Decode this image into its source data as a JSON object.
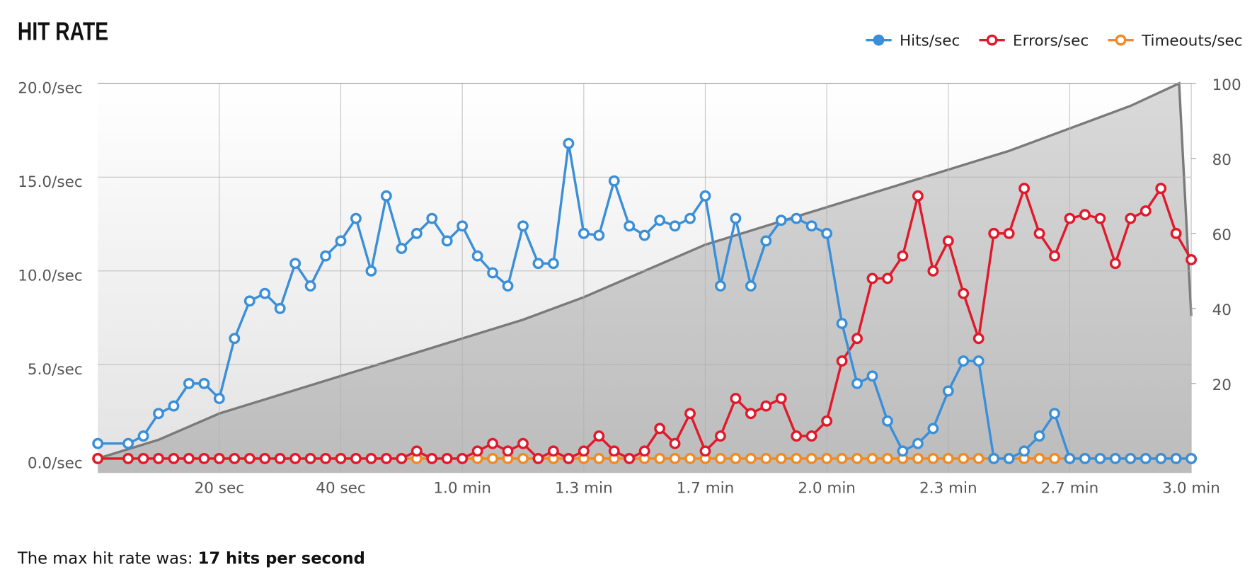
{
  "chart_data": {
    "type": "line",
    "title": "HIT RATE",
    "xlim": [
      0,
      180
    ],
    "xticks": [
      {
        "value": 20,
        "label": "20 sec"
      },
      {
        "value": 40,
        "label": "40 sec"
      },
      {
        "value": 60,
        "label": "1.0 min"
      },
      {
        "value": 80,
        "label": "1.3 min"
      },
      {
        "value": 100,
        "label": "1.7 min"
      },
      {
        "value": 120,
        "label": "2.0 min"
      },
      {
        "value": 140,
        "label": "2.3 min"
      },
      {
        "value": 160,
        "label": "2.7 min"
      },
      {
        "value": 180,
        "label": "3.0 min"
      }
    ],
    "ylim": [
      0,
      20
    ],
    "yticks": [
      {
        "value": 0,
        "label": "0.0/sec"
      },
      {
        "value": 5,
        "label": "5.0/sec"
      },
      {
        "value": 10,
        "label": "10.0/sec"
      },
      {
        "value": 15,
        "label": "15.0/sec"
      },
      {
        "value": 20,
        "label": "20.0/sec"
      }
    ],
    "y2lim": [
      0,
      100
    ],
    "y2ticks": [
      20,
      40,
      60,
      80,
      100
    ],
    "grid": true,
    "legend": "top-right",
    "x": [
      0,
      5,
      7.5,
      10,
      12.5,
      15,
      17.5,
      20,
      22.5,
      25,
      27.5,
      30,
      32.5,
      35,
      37.5,
      40,
      42.5,
      45,
      47.5,
      50,
      52.5,
      55,
      57.5,
      60,
      62.5,
      65,
      67.5,
      70,
      72.5,
      75,
      77.5,
      80,
      82.5,
      85,
      87.5,
      90,
      92.5,
      95,
      97.5,
      100,
      102.5,
      105,
      107.5,
      110,
      112.5,
      115,
      117.5,
      120,
      122.5,
      125,
      127.5,
      130,
      132.5,
      135,
      137.5,
      140,
      142.5,
      145,
      147.5,
      150,
      152.5,
      155,
      157.5,
      160,
      162.5,
      165,
      167.5,
      170,
      172.5,
      175,
      177.5,
      180
    ],
    "series": [
      {
        "type": "area",
        "axis": "y2",
        "color": "#7a7a7a",
        "x": [
          0,
          10,
          20,
          30,
          40,
          50,
          60,
          70,
          80,
          90,
          100,
          110,
          120,
          130,
          140,
          150,
          160,
          170,
          178,
          180
        ],
        "values": [
          0,
          5,
          12,
          17,
          22,
          27,
          32,
          37,
          43,
          50,
          57,
          62,
          67,
          72,
          77,
          82,
          88,
          94,
          100,
          38
        ]
      },
      {
        "name": "Hits/sec",
        "color": "#3a8fd8",
        "values": [
          0.8,
          0.8,
          1.2,
          2.4,
          2.8,
          4.0,
          4.0,
          3.2,
          6.4,
          8.4,
          8.8,
          8.0,
          10.4,
          9.2,
          10.8,
          11.6,
          12.8,
          10.0,
          14.0,
          11.2,
          12.0,
          12.8,
          11.6,
          12.4,
          10.8,
          9.9,
          9.2,
          12.4,
          10.4,
          10.4,
          16.8,
          12.0,
          11.9,
          14.8,
          12.4,
          11.9,
          12.7,
          12.4,
          12.8,
          14.0,
          9.2,
          12.8,
          9.2,
          11.6,
          12.7,
          12.8,
          12.4,
          12.0,
          7.2,
          4.0,
          4.4,
          2.0,
          0.4,
          0.8,
          1.6,
          3.6,
          5.2,
          5.2,
          0,
          0,
          0.4,
          1.2,
          2.4,
          0,
          0,
          0,
          0,
          0,
          0,
          0,
          0,
          0
        ]
      },
      {
        "name": "Errors/sec",
        "color": "#e0192b",
        "values": [
          0,
          0,
          0,
          0,
          0,
          0,
          0,
          0,
          0,
          0,
          0,
          0,
          0,
          0,
          0,
          0,
          0,
          0,
          0,
          0,
          0.4,
          0,
          0,
          0,
          0.4,
          0.8,
          0.4,
          0.8,
          0,
          0.4,
          0,
          0.4,
          1.2,
          0.4,
          0,
          0.4,
          1.6,
          0.8,
          2.4,
          0.4,
          1.2,
          3.2,
          2.4,
          2.8,
          3.2,
          1.2,
          1.2,
          2.0,
          5.2,
          6.4,
          9.6,
          9.6,
          10.8,
          14.0,
          10.0,
          11.6,
          8.8,
          6.4,
          12.0,
          12.0,
          14.4,
          12.0,
          10.8,
          12.8,
          13.0,
          12.8,
          10.4,
          12.8,
          13.2,
          14.4,
          12.0,
          10.6
        ]
      },
      {
        "name": "Timeouts/sec",
        "color": "#f08a24",
        "values": [
          0,
          0,
          0,
          0,
          0,
          0,
          0,
          0,
          0,
          0,
          0,
          0,
          0,
          0,
          0,
          0,
          0,
          0,
          0,
          0,
          0,
          0,
          0,
          0,
          0,
          0,
          0,
          0,
          0,
          0,
          0,
          0,
          0,
          0,
          0,
          0,
          0,
          0,
          0,
          0,
          0,
          0,
          0,
          0,
          0,
          0,
          0,
          0,
          0,
          0,
          0,
          0,
          0,
          0,
          0,
          0,
          0,
          0,
          0,
          0,
          0,
          0,
          0,
          0,
          0,
          0,
          0,
          0,
          0,
          0,
          0,
          0
        ]
      }
    ]
  },
  "summary": {
    "text": "The max hit rate was:",
    "highlight": "17 hits per second"
  }
}
